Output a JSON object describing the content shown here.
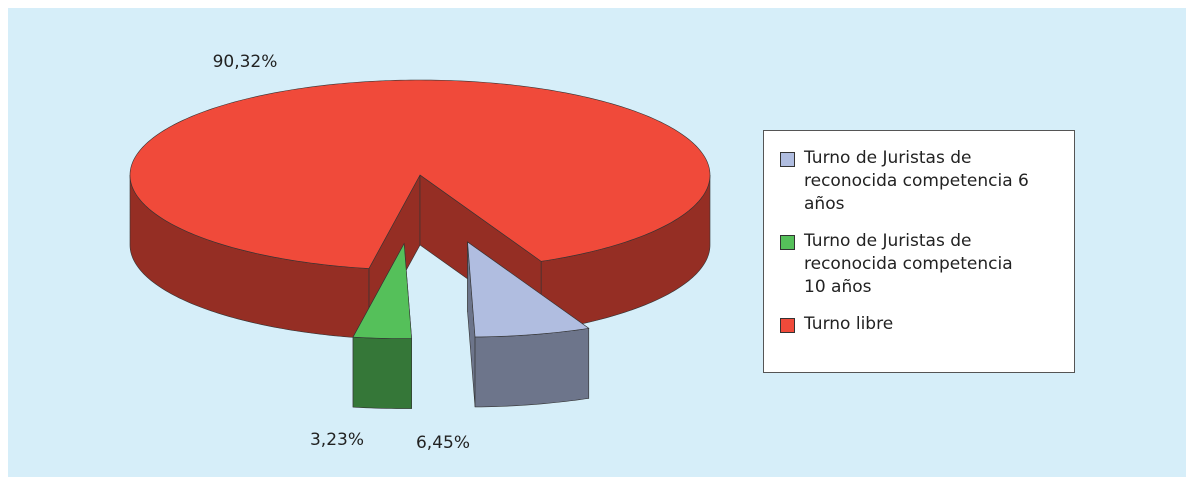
{
  "chart_data": {
    "type": "pie",
    "three_d": true,
    "series": [
      {
        "name": "Turno de Juristas de reconocida competencia 6 años",
        "color": "#b0bde0",
        "values": [
          6.45
        ],
        "value_labels": [
          "6,45%"
        ]
      },
      {
        "name": "Turno de Juristas de reconocida competencia 10 años",
        "color": "#55c05a",
        "values": [
          3.23
        ],
        "value_labels": [
          "3,23%"
        ]
      },
      {
        "name": "Turno libre",
        "color": "#f04a3a",
        "values": [
          90.32
        ],
        "value_labels": [
          "90,32%"
        ]
      }
    ],
    "legend": "right"
  }
}
